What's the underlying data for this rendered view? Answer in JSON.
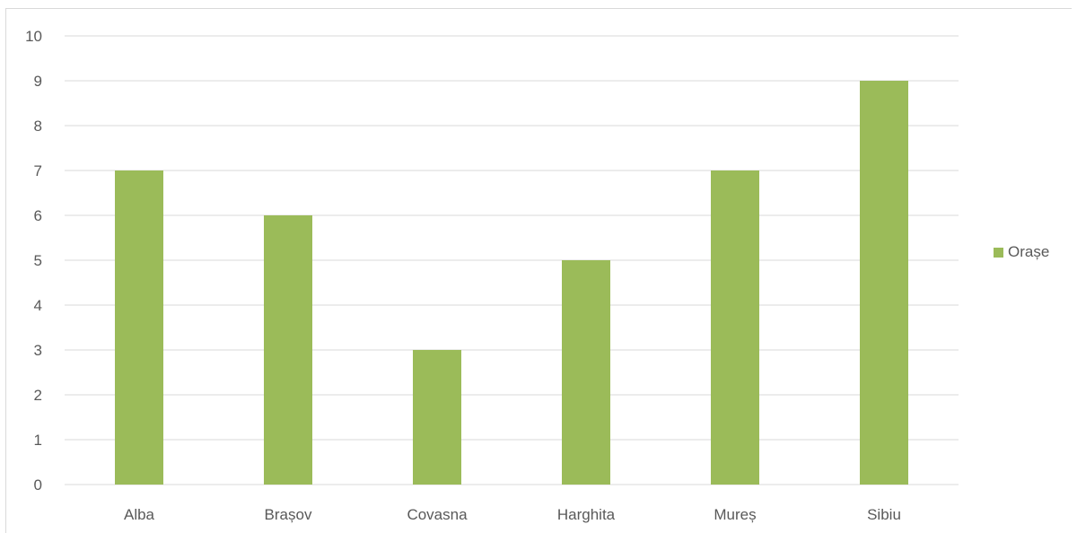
{
  "chart_data": {
    "type": "bar",
    "title": "",
    "xlabel": "",
    "ylabel": "",
    "categories": [
      "Alba",
      "Brașov",
      "Covasna",
      "Harghita",
      "Mureș",
      "Sibiu"
    ],
    "series": [
      {
        "name": "Orașe",
        "values": [
          7,
          6,
          3,
          5,
          7,
          9
        ]
      }
    ],
    "ylim": [
      0,
      10
    ],
    "yticks": [
      "0",
      "1",
      "2",
      "3",
      "4",
      "5",
      "6",
      "7",
      "8",
      "9",
      "10"
    ],
    "grid": true,
    "legend_position": "right",
    "colors": {
      "bar": "#9bbb59",
      "grid": "#d9d9d9",
      "text": "#595959"
    }
  }
}
